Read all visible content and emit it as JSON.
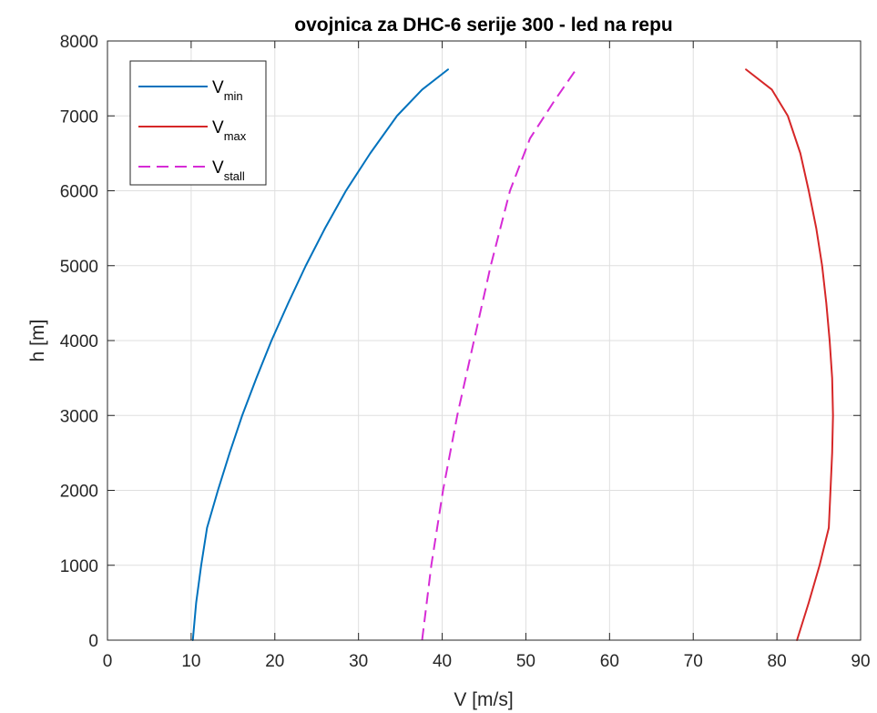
{
  "chart_data": {
    "type": "line",
    "title": "ovojnica za DHC-6 serije 300 - led na repu",
    "xlabel": "V [m/s]",
    "ylabel": "h [m]",
    "xlim": [
      0,
      90
    ],
    "ylim": [
      0,
      8000
    ],
    "xticks": [
      0,
      10,
      20,
      30,
      40,
      50,
      60,
      70,
      80,
      90
    ],
    "yticks": [
      0,
      1000,
      2000,
      3000,
      4000,
      5000,
      6000,
      7000,
      8000
    ],
    "grid": true,
    "legend_position": "top-left",
    "series": [
      {
        "name": "V_min",
        "legend_main": "V",
        "legend_sub": "min",
        "color": "#0072BD",
        "style": "solid",
        "points": [
          [
            10.2,
            0
          ],
          [
            10.6,
            500
          ],
          [
            11.2,
            1000
          ],
          [
            11.9,
            1500
          ],
          [
            13.2,
            2000
          ],
          [
            14.6,
            2500
          ],
          [
            16.1,
            3000
          ],
          [
            17.8,
            3500
          ],
          [
            19.6,
            4000
          ],
          [
            21.6,
            4500
          ],
          [
            23.7,
            5000
          ],
          [
            26.0,
            5500
          ],
          [
            28.5,
            6000
          ],
          [
            31.4,
            6500
          ],
          [
            34.6,
            7000
          ],
          [
            37.6,
            7350
          ],
          [
            40.7,
            7620
          ]
        ]
      },
      {
        "name": "V_max",
        "legend_main": "V",
        "legend_sub": "max",
        "color": "#D62728",
        "style": "solid",
        "points": [
          [
            82.4,
            0
          ],
          [
            83.8,
            500
          ],
          [
            85.1,
            1000
          ],
          [
            86.2,
            1500
          ],
          [
            86.4,
            2000
          ],
          [
            86.6,
            2500
          ],
          [
            86.7,
            3000
          ],
          [
            86.6,
            3500
          ],
          [
            86.3,
            4000
          ],
          [
            85.9,
            4500
          ],
          [
            85.4,
            5000
          ],
          [
            84.7,
            5500
          ],
          [
            83.8,
            6000
          ],
          [
            82.8,
            6500
          ],
          [
            81.3,
            7000
          ],
          [
            79.4,
            7350
          ],
          [
            76.3,
            7620
          ]
        ]
      },
      {
        "name": "V_stall",
        "legend_main": "V",
        "legend_sub": "stall",
        "color": "#D62BD6",
        "style": "dashed",
        "points": [
          [
            37.6,
            0
          ],
          [
            38.7,
            1000
          ],
          [
            40.1,
            2000
          ],
          [
            41.8,
            3000
          ],
          [
            43.8,
            4000
          ],
          [
            45.8,
            5000
          ],
          [
            48.1,
            6000
          ],
          [
            50.5,
            6700
          ],
          [
            53.4,
            7200
          ],
          [
            56.0,
            7620
          ]
        ]
      }
    ]
  }
}
